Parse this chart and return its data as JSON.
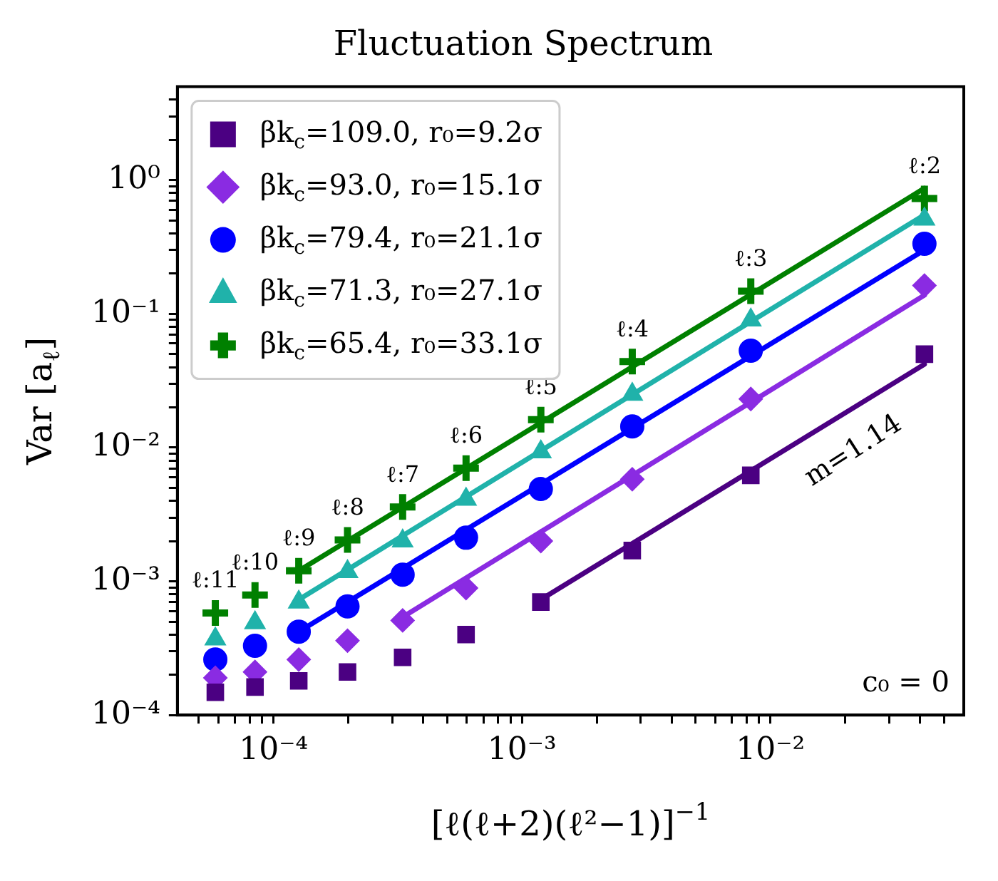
{
  "chart_data": {
    "type": "scatter",
    "title": "Fluctuation Spectrum",
    "xlabel": "[ℓ(ℓ+2)(ℓ²−1)]$^{−1}$",
    "ylabel": "Var [a$_{ℓ}$]",
    "log": "xy",
    "legend": "top left",
    "grid": false,
    "xlim": [
      4.1e-05,
      0.06
    ],
    "ylim": [
      0.0001,
      5
    ],
    "xticks": [
      {
        "value": 5e-05,
        "label": null
      },
      {
        "value": 6e-05,
        "label": null
      },
      {
        "value": 7e-05,
        "label": null
      },
      {
        "value": 8e-05,
        "label": null
      },
      {
        "value": 9e-05,
        "label": null
      },
      {
        "value": 0.0001,
        "label": "10⁻⁴"
      },
      {
        "value": 0.0002,
        "label": null
      },
      {
        "value": 0.0003,
        "label": null
      },
      {
        "value": 0.0004,
        "label": null
      },
      {
        "value": 0.0005,
        "label": null
      },
      {
        "value": 0.0006,
        "label": null
      },
      {
        "value": 0.0007,
        "label": null
      },
      {
        "value": 0.0008,
        "label": null
      },
      {
        "value": 0.0009,
        "label": null
      },
      {
        "value": 0.001,
        "label": "10⁻³"
      },
      {
        "value": 0.002,
        "label": null
      },
      {
        "value": 0.003,
        "label": null
      },
      {
        "value": 0.004,
        "label": null
      },
      {
        "value": 0.005,
        "label": null
      },
      {
        "value": 0.006,
        "label": null
      },
      {
        "value": 0.007,
        "label": null
      },
      {
        "value": 0.008,
        "label": null
      },
      {
        "value": 0.009,
        "label": null
      },
      {
        "value": 0.01,
        "label": "10⁻²"
      },
      {
        "value": 0.02,
        "label": null
      },
      {
        "value": 0.03,
        "label": null
      },
      {
        "value": 0.04,
        "label": null
      },
      {
        "value": 0.05,
        "label": null
      }
    ],
    "yticks": [
      {
        "value": 0.0001,
        "label": "10⁻⁴"
      },
      {
        "value": 0.0002,
        "label": null
      },
      {
        "value": 0.0003,
        "label": null
      },
      {
        "value": 0.0004,
        "label": null
      },
      {
        "value": 0.0005,
        "label": null
      },
      {
        "value": 0.0006,
        "label": null
      },
      {
        "value": 0.0007,
        "label": null
      },
      {
        "value": 0.0008,
        "label": null
      },
      {
        "value": 0.0009,
        "label": null
      },
      {
        "value": 0.001,
        "label": "10⁻³"
      },
      {
        "value": 0.002,
        "label": null
      },
      {
        "value": 0.003,
        "label": null
      },
      {
        "value": 0.004,
        "label": null
      },
      {
        "value": 0.005,
        "label": null
      },
      {
        "value": 0.006,
        "label": null
      },
      {
        "value": 0.007,
        "label": null
      },
      {
        "value": 0.008,
        "label": null
      },
      {
        "value": 0.009,
        "label": null
      },
      {
        "value": 0.01,
        "label": "10⁻²"
      },
      {
        "value": 0.02,
        "label": null
      },
      {
        "value": 0.03,
        "label": null
      },
      {
        "value": 0.04,
        "label": null
      },
      {
        "value": 0.05,
        "label": null
      },
      {
        "value": 0.06,
        "label": null
      },
      {
        "value": 0.07,
        "label": null
      },
      {
        "value": 0.08,
        "label": null
      },
      {
        "value": 0.09,
        "label": null
      },
      {
        "value": 0.1,
        "label": "10⁻¹"
      },
      {
        "value": 0.2,
        "label": null
      },
      {
        "value": 0.3,
        "label": null
      },
      {
        "value": 0.4,
        "label": null
      },
      {
        "value": 0.5,
        "label": null
      },
      {
        "value": 0.6,
        "label": null
      },
      {
        "value": 0.7,
        "label": null
      },
      {
        "value": 0.8,
        "label": null
      },
      {
        "value": 0.9,
        "label": null
      },
      {
        "value": 1,
        "label": "10⁰"
      },
      {
        "value": 2,
        "label": null
      },
      {
        "value": 3,
        "label": null
      },
      {
        "value": 4,
        "label": null
      }
    ],
    "x": [
      0.041667,
      0.0083333,
      0.0027778,
      0.0011905,
      0.00059524,
      0.00033069,
      0.00019841,
      0.00012626,
      8.4175e-05,
      5.8275e-05
    ],
    "series": [
      {
        "name": "βk$_{c}$=109.0, r₀=9.2σ",
        "color": "#4b0082",
        "marker": "square",
        "values": [
          0.05,
          0.0062,
          0.0017,
          0.0007,
          0.0004,
          0.00027,
          0.00021,
          0.00018,
          0.000162,
          0.000148
        ]
      },
      {
        "name": "βk$_{c}$=93.0, r₀=15.1σ",
        "color": "#8a2be2",
        "marker": "diamond",
        "values": [
          0.163,
          0.0231,
          0.0058,
          0.002,
          0.00089,
          0.00051,
          0.00036,
          0.00026,
          0.00021,
          0.00019
        ]
      },
      {
        "name": "βk$_{c}$=79.4, r₀=21.1σ",
        "color": "#0000ff",
        "marker": "circle",
        "values": [
          0.334,
          0.053,
          0.0144,
          0.0049,
          0.00212,
          0.00112,
          0.00065,
          0.00042,
          0.00033,
          0.00026
        ]
      },
      {
        "name": "βk$_{c}$=71.3, r₀=27.1σ",
        "color": "#20b2aa",
        "marker": "triangle",
        "values": [
          0.51,
          0.09,
          0.025,
          0.0093,
          0.0041,
          0.002,
          0.00118,
          0.0007,
          0.00049,
          0.00037
        ]
      },
      {
        "name": "βk$_{c}$=65.4, r₀=33.1σ",
        "color": "#008000",
        "marker": "cross",
        "values": [
          0.73,
          0.148,
          0.044,
          0.0162,
          0.00703,
          0.0036,
          0.00204,
          0.0012,
          0.00079,
          0.00058
        ]
      },
      {
        "type": "line",
        "color": "#4b0082",
        "marker": "none",
        "x": [
          0.0011905,
          0.041667
        ],
        "values": [
          0.00073,
          0.042
        ]
      },
      {
        "type": "line",
        "color": "#8a2be2",
        "marker": "none",
        "x": [
          0.00033069,
          0.041667
        ],
        "values": [
          0.00054,
          0.138
        ]
      },
      {
        "type": "line",
        "color": "#0000ff",
        "marker": "none",
        "x": [
          0.00012626,
          0.041667
        ],
        "values": [
          0.00042,
          0.3
        ]
      },
      {
        "type": "line",
        "color": "#20b2aa",
        "marker": "none",
        "x": [
          0.00012626,
          0.041667
        ],
        "values": [
          0.00073,
          0.55
        ]
      },
      {
        "type": "line",
        "color": "#008000",
        "marker": "none",
        "x": [
          0.00012626,
          0.041667
        ],
        "values": [
          0.0012,
          0.87
        ]
      }
    ],
    "annotations": [
      {
        "text": "ℓ:2",
        "x": 0.041667,
        "y": 0.73
      },
      {
        "text": "ℓ:3",
        "x": 0.0083333,
        "y": 0.148
      },
      {
        "text": "ℓ:4",
        "x": 0.0027778,
        "y": 0.044
      },
      {
        "text": "ℓ:5",
        "x": 0.0011905,
        "y": 0.0162
      },
      {
        "text": "ℓ:6",
        "x": 0.00059524,
        "y": 0.00703
      },
      {
        "text": "ℓ:7",
        "x": 0.00033069,
        "y": 0.0036
      },
      {
        "text": "ℓ:8",
        "x": 0.00019841,
        "y": 0.00204
      },
      {
        "text": "ℓ:9",
        "x": 0.00012626,
        "y": 0.0012
      },
      {
        "text": "ℓ:10",
        "x": 8.4175e-05,
        "y": 0.00079
      },
      {
        "text": "ℓ:11",
        "x": 5.8275e-05,
        "y": 0.00058
      },
      "m=1.14",
      "c₀ = 0"
    ]
  }
}
